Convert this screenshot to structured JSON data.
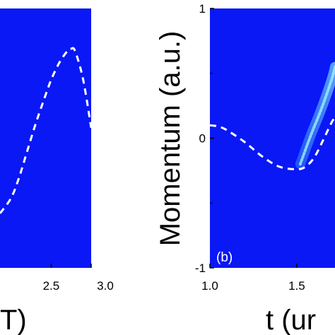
{
  "chart_data": [
    {
      "type": "heatmap",
      "xlabel": "T)",
      "x_ticks": [
        "2.5",
        "3.0"
      ],
      "xlim": [
        1.86,
        3.0
      ],
      "ylim": [
        -1,
        1
      ],
      "background_color": "#0a18f5",
      "curve_color": "#ffffff",
      "curve": {
        "x": [
          1.86,
          2.0,
          2.1,
          2.2,
          2.3,
          2.4,
          2.5,
          2.6,
          2.7,
          2.75,
          2.8,
          2.9,
          3.0
        ],
        "y": [
          -0.58,
          -0.46,
          -0.3,
          -0.1,
          0.1,
          0.28,
          0.45,
          0.58,
          0.67,
          0.69,
          0.67,
          0.45,
          0.08
        ]
      }
    },
    {
      "type": "heatmap",
      "panel_label": "(b)",
      "ylabel": "Momentum (a.u.)",
      "xlabel": "t (ur",
      "x_ticks": [
        "1.0",
        "1.5"
      ],
      "y_ticks": [
        "1",
        "0",
        "-1"
      ],
      "xlim": [
        1.0,
        1.72
      ],
      "ylim": [
        -1,
        1
      ],
      "background_color": "#0a18f5",
      "curve_color": "#ffffff",
      "curve": {
        "x": [
          1.0,
          1.05,
          1.1,
          1.2,
          1.3,
          1.4,
          1.5,
          1.55,
          1.6,
          1.65,
          1.7,
          1.72
        ],
        "y": [
          0.1,
          0.09,
          0.06,
          -0.03,
          -0.14,
          -0.22,
          -0.24,
          -0.22,
          -0.15,
          -0.02,
          0.12,
          0.16
        ]
      },
      "bright_band": {
        "x": [
          1.52,
          1.58,
          1.64,
          1.7,
          1.72
        ],
        "y": [
          -0.2,
          0.02,
          0.22,
          0.45,
          0.55
        ]
      }
    }
  ]
}
